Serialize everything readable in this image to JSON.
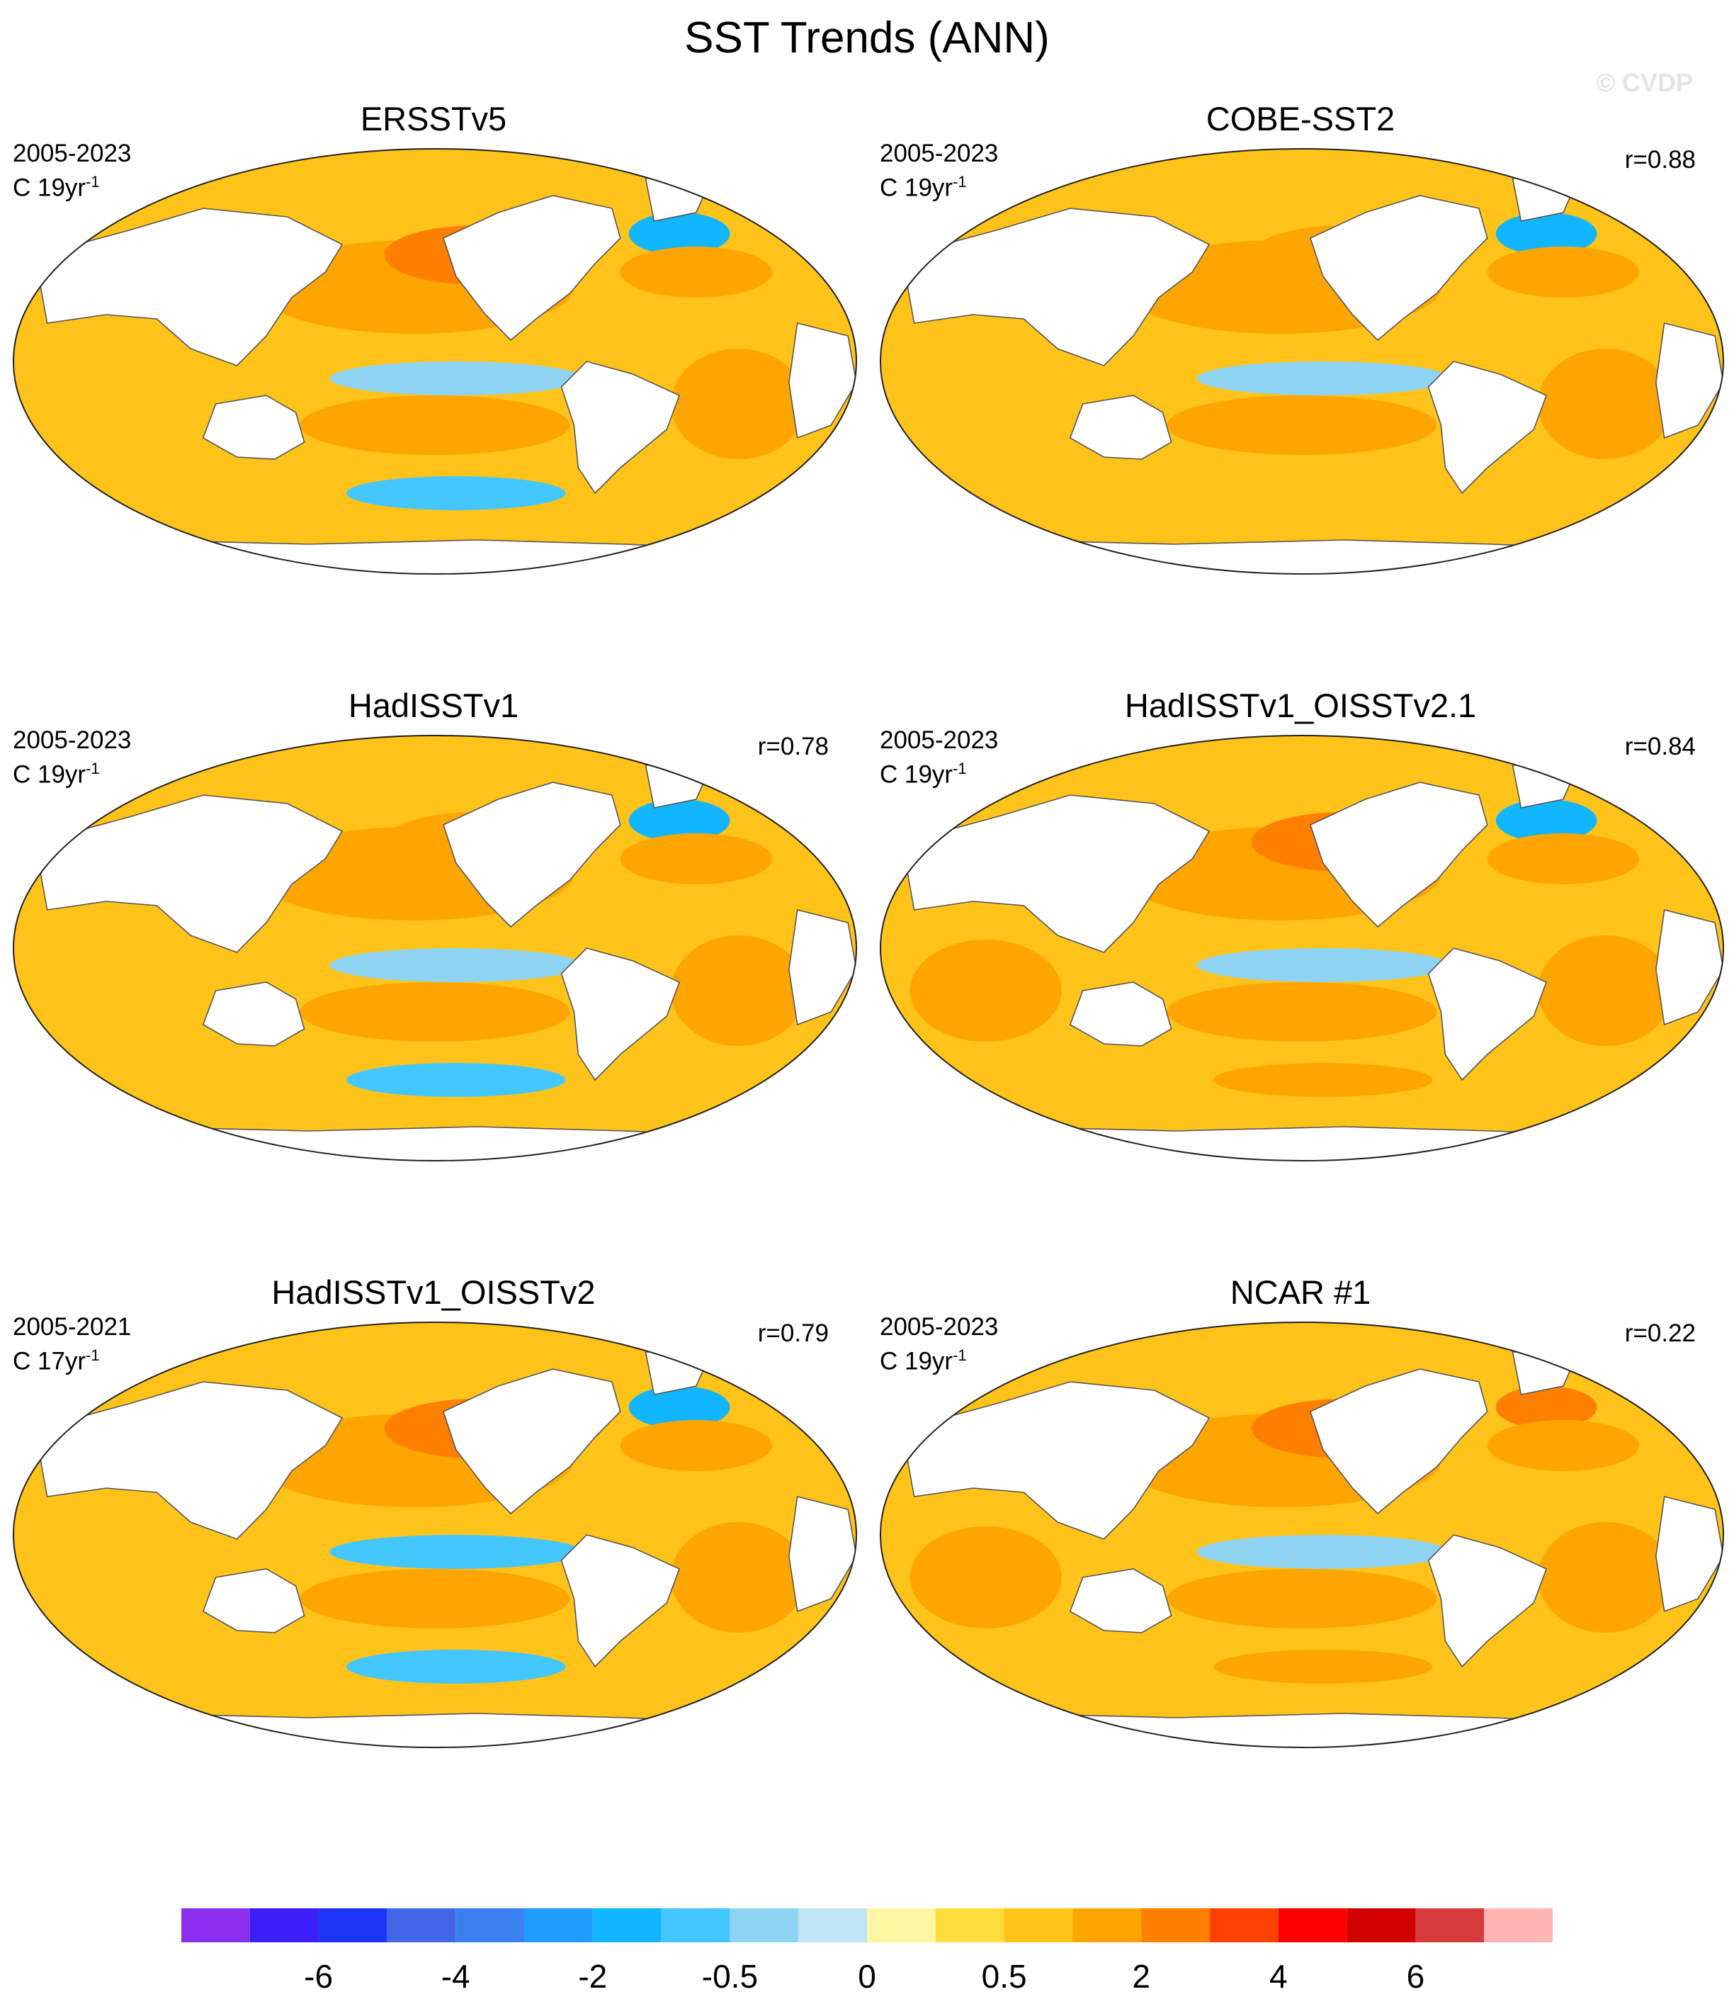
{
  "title": "SST Trends (ANN)",
  "watermark": "© CVDP",
  "unit_prefix": "C ",
  "unit_power": "-1",
  "panels": [
    {
      "title": "ERSSTv5",
      "period": "2005-2023",
      "units": "19yr",
      "corr": "",
      "trend_field": {
        "pacific": 1.4,
        "eq_pacific": -0.5,
        "n_atlantic": -1.2,
        "southern_ocean": -1.0,
        "indian": 0.9
      }
    },
    {
      "title": "COBE-SST2",
      "period": "2005-2023",
      "units": "19yr",
      "corr": "r=0.88",
      "trend_field": {
        "pacific": 1.2,
        "eq_pacific": -0.4,
        "n_atlantic": -1.4,
        "southern_ocean": 0.6,
        "indian": 0.8
      }
    },
    {
      "title": "HadISSTv1",
      "period": "2005-2023",
      "units": "19yr",
      "corr": "r=0.78",
      "trend_field": {
        "pacific": 1.3,
        "eq_pacific": -0.4,
        "n_atlantic": -1.3,
        "southern_ocean": -0.7,
        "indian": 0.9
      }
    },
    {
      "title": "HadISSTv1_OISSTv2.1",
      "period": "2005-2023",
      "units": "19yr",
      "corr": "r=0.84",
      "trend_field": {
        "pacific": 1.6,
        "eq_pacific": -0.4,
        "n_atlantic": -1.5,
        "southern_ocean": 1.5,
        "indian": 1.2
      }
    },
    {
      "title": "HadISSTv1_OISSTv2",
      "period": "2005-2021",
      "units": "17yr",
      "corr": "r=0.79",
      "trend_field": {
        "pacific": 1.4,
        "eq_pacific": -0.6,
        "n_atlantic": -2.0,
        "southern_ocean": -0.6,
        "indian": 0.7
      }
    },
    {
      "title": "NCAR #1",
      "period": "2005-2023",
      "units": "19yr",
      "corr": "r=0.22",
      "trend_field": {
        "pacific": 1.5,
        "eq_pacific": -0.4,
        "n_atlantic": 2.5,
        "southern_ocean": 1.0,
        "indian": 1.2
      }
    }
  ],
  "colorbar": {
    "colors": [
      "#8b2ef0",
      "#3c1ef8",
      "#1d33f5",
      "#4267e6",
      "#3b80f0",
      "#1f9cff",
      "#12b6ff",
      "#44c6ff",
      "#8fd3f2",
      "#bfe4f5",
      "#fff6a4",
      "#ffdd3c",
      "#ffc31a",
      "#ffa500",
      "#ff8000",
      "#ff4100",
      "#ff0000",
      "#d30000",
      "#d73b3b",
      "#ffb4b4"
    ],
    "labels": [
      "-6",
      "-4",
      "-2",
      "-0.5",
      "0",
      "0.5",
      "2",
      "4",
      "6"
    ]
  }
}
